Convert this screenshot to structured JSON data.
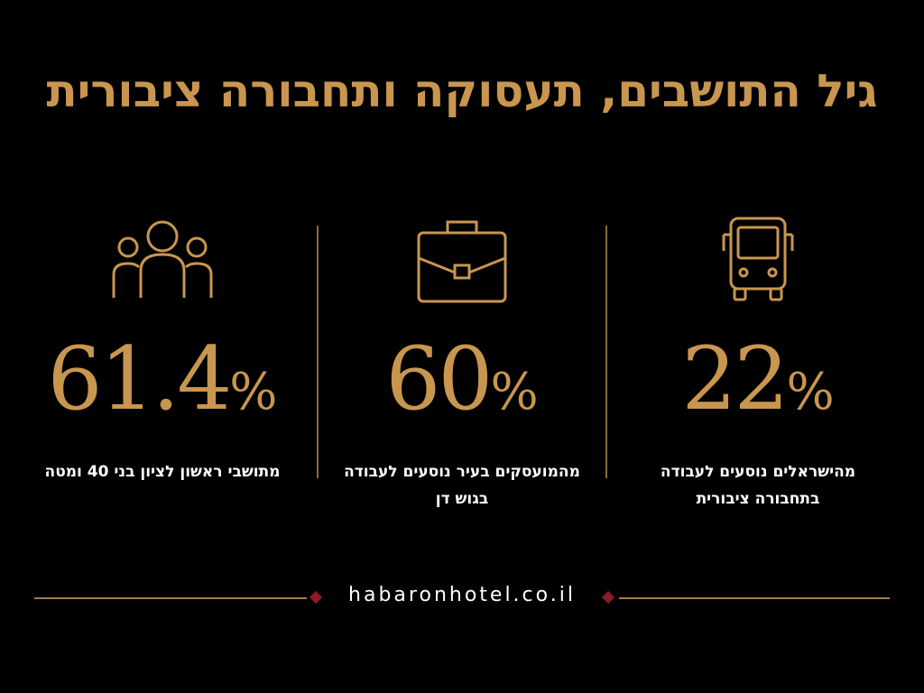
{
  "title": "גיל התושבים, תעסוקה ותחבורה ציבורית",
  "stats": [
    {
      "number": "22",
      "unit": "%",
      "caption": [
        "מהישראלים נוסעים לעבודה",
        "בתחבורה ציבורית"
      ]
    },
    {
      "number": "60",
      "unit": "%",
      "caption": [
        "מהמועסקים בעיר נוסעים לעבודה בגוש דן"
      ]
    },
    {
      "number": "61.4",
      "unit": "%",
      "caption": [
        "מתושבי ראשון לציון בני 40 ומטה"
      ]
    }
  ],
  "footer": "habaronhotel.co.il"
}
